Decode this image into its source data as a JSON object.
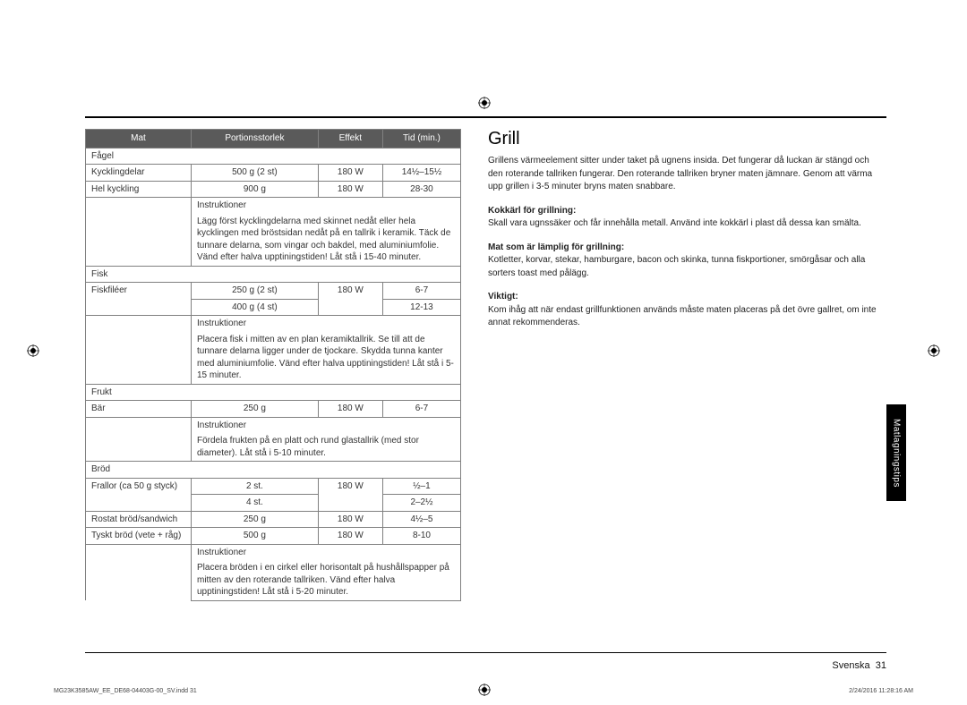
{
  "table": {
    "headers": [
      "Mat",
      "Portionsstorlek",
      "Effekt",
      "Tid (min.)"
    ],
    "sections": [
      {
        "name": "Fågel",
        "rows": [
          {
            "mat": "Kycklingdelar",
            "portion": "500 g (2 st)",
            "effekt": "180 W",
            "tid": "14½–15½"
          },
          {
            "mat": "Hel kyckling",
            "portion": "900 g",
            "effekt": "180 W",
            "tid": "28-30"
          }
        ],
        "instruktioner": "Lägg först kycklingdelarna med skinnet nedåt eller hela kycklingen med bröstsidan nedåt på en tallrik i keramik. Täck de tunnare delarna, som vingar och bakdel, med aluminiumfolie. Vänd efter halva upptiningstiden! Låt stå i 15-40 minuter."
      },
      {
        "name": "Fisk",
        "rows": [
          {
            "mat": "Fiskfiléer",
            "portion": "250 g (2 st)",
            "effekt": "180 W",
            "tid": "6-7"
          },
          {
            "mat": "",
            "portion": "400 g (4 st)",
            "effekt": "",
            "tid": "12-13"
          }
        ],
        "instruktioner": "Placera fisk i mitten av en plan keramiktallrik. Se till att de tunnare delarna ligger under de tjockare. Skydda tunna kanter med aluminiumfolie. Vänd efter halva upptiningstiden! Låt stå i 5-15 minuter."
      },
      {
        "name": "Frukt",
        "rows": [
          {
            "mat": "Bär",
            "portion": "250 g",
            "effekt": "180 W",
            "tid": "6-7"
          }
        ],
        "instruktioner": "Fördela frukten på en platt och rund glastallrik (med stor diameter). Låt stå i 5-10 minuter."
      },
      {
        "name": "Bröd",
        "rows": [
          {
            "mat": "Frallor (ca 50 g styck)",
            "portion": "2 st.",
            "effekt": "180 W",
            "tid": "½–1"
          },
          {
            "mat": "",
            "portion": "4 st.",
            "effekt": "",
            "tid": "2–2½"
          },
          {
            "mat": "Rostat bröd/sandwich",
            "portion": "250 g",
            "effekt": "180 W",
            "tid": "4½–5"
          },
          {
            "mat": "Tyskt bröd (vete + råg)",
            "portion": "500 g",
            "effekt": "180 W",
            "tid": "8-10"
          }
        ],
        "instruktioner": "Placera bröden i en cirkel eller horisontalt på hushållspapper på mitten av den roterande tallriken. Vänd efter halva upptiningstiden! Låt stå i 5-20 minuter."
      }
    ],
    "instr_label": "Instruktioner"
  },
  "right": {
    "title": "Grill",
    "intro": "Grillens värmeelement sitter under taket på ugnens insida. Det fungerar då luckan är stängd och den roterande tallriken fungerar. Den roterande tallriken bryner maten jämnare. Genom att värma upp grillen i 3-5 minuter bryns maten snabbare.",
    "h1": "Kokkärl för grillning:",
    "p1": "Skall vara ugnssäker och får innehålla metall. Använd inte kokkärl i plast då dessa kan smälta.",
    "h2": "Mat som är lämplig för grillning:",
    "p2": "Kotletter, korvar, stekar, hamburgare, bacon och skinka, tunna fiskportioner, smörgåsar och alla sorters toast med pålägg.",
    "h3": "Viktigt:",
    "p3": "Kom ihåg att när endast grillfunktionen används måste maten placeras på det övre gallret, om inte annat rekommenderas."
  },
  "sidetab": "Matlagningstips",
  "footer": {
    "lang": "Svenska",
    "page": "31",
    "file": "MG23K3585AW_EE_DE68-04403G-00_SV.indd   31",
    "time": "2/24/2016   11:28:16 AM"
  }
}
